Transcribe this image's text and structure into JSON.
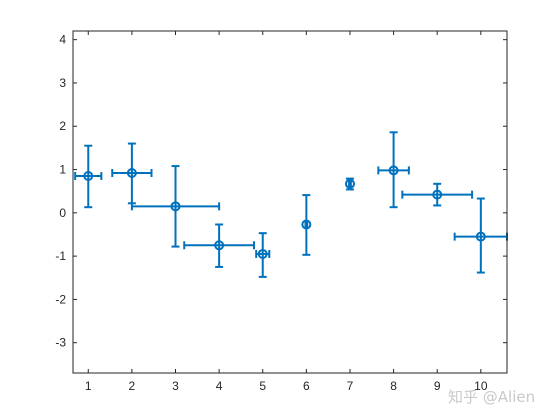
{
  "chart_data": {
    "type": "scatter",
    "title": "",
    "xlabel": "",
    "ylabel": "",
    "xlim": [
      0.65,
      10.6
    ],
    "ylim": [
      -3.7,
      4.2
    ],
    "grid": false,
    "legend": "none",
    "color": "#0072BD",
    "xticks": [
      1,
      2,
      3,
      4,
      5,
      6,
      7,
      8,
      9,
      10
    ],
    "yticks": [
      -3,
      -2,
      -1,
      0,
      1,
      2,
      3,
      4
    ],
    "points": [
      {
        "x": 1,
        "y": 0.85,
        "y_err_low": 0.72,
        "y_err_high": 0.7,
        "x_err_low": 0.3,
        "x_err_high": 0.3
      },
      {
        "x": 2,
        "y": 0.92,
        "y_err_low": 0.7,
        "y_err_high": 0.68,
        "x_err_low": 0.45,
        "x_err_high": 0.45
      },
      {
        "x": 3,
        "y": 0.15,
        "y_err_low": 0.93,
        "y_err_high": 0.93,
        "x_err_low": 1.0,
        "x_err_high": 1.0
      },
      {
        "x": 4,
        "y": -0.75,
        "y_err_low": 0.5,
        "y_err_high": 0.48,
        "x_err_low": 0.8,
        "x_err_high": 0.8
      },
      {
        "x": 5,
        "y": -0.95,
        "y_err_low": 0.53,
        "y_err_high": 0.48,
        "x_err_low": 0.15,
        "x_err_high": 0.15
      },
      {
        "x": 6,
        "y": -0.27,
        "y_err_low": 0.7,
        "y_err_high": 0.68,
        "x_err_low": 0.02,
        "x_err_high": 0.02
      },
      {
        "x": 7,
        "y": 0.67,
        "y_err_low": 0.13,
        "y_err_high": 0.12,
        "x_err_low": 0.02,
        "x_err_high": 0.02
      },
      {
        "x": 8,
        "y": 0.98,
        "y_err_low": 0.85,
        "y_err_high": 0.88,
        "x_err_low": 0.35,
        "x_err_high": 0.35
      },
      {
        "x": 9,
        "y": 0.42,
        "y_err_low": 0.25,
        "y_err_high": 0.25,
        "x_err_low": 0.8,
        "x_err_high": 0.8
      },
      {
        "x": 10,
        "y": -0.55,
        "y_err_low": 0.83,
        "y_err_high": 0.88,
        "x_err_low": 0.6,
        "x_err_high": 0.6
      }
    ]
  },
  "watermark": "知乎 @Alien"
}
